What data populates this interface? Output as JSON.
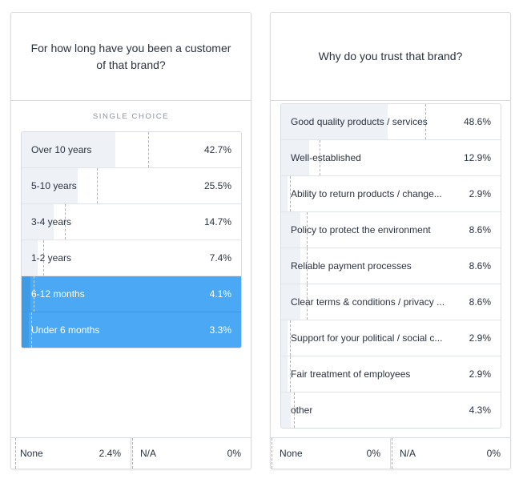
{
  "left_card": {
    "question": "For how long have you been a customer of that brand?",
    "type_label": "SINGLE CHOICE",
    "options": [
      {
        "label": "Over 10 years",
        "pct": "42.7%",
        "value": 42.7,
        "selected": false
      },
      {
        "label": "5-10 years",
        "pct": "25.5%",
        "value": 25.5,
        "selected": false
      },
      {
        "label": "3-4 years",
        "pct": "14.7%",
        "value": 14.7,
        "selected": false
      },
      {
        "label": "1-2 years",
        "pct": "7.4%",
        "value": 7.4,
        "selected": false
      },
      {
        "label": "6-12 months",
        "pct": "4.1%",
        "value": 4.1,
        "selected": true
      },
      {
        "label": "Under 6 months",
        "pct": "3.3%",
        "value": 3.3,
        "selected": true
      }
    ],
    "footer": [
      {
        "label": "None",
        "pct": "2.4%",
        "value": 2.4
      },
      {
        "label": "N/A",
        "pct": "0%",
        "value": 0
      }
    ]
  },
  "right_card": {
    "question": "Why do you trust that brand?",
    "options": [
      {
        "label": "Good quality products / services",
        "pct": "48.6%",
        "value": 48.6,
        "selected": false
      },
      {
        "label": "Well-established",
        "pct": "12.9%",
        "value": 12.9,
        "selected": false
      },
      {
        "label": "Ability to return products / change...",
        "pct": "2.9%",
        "value": 2.9,
        "selected": false
      },
      {
        "label": "Policy to protect the environment",
        "pct": "8.6%",
        "value": 8.6,
        "selected": false
      },
      {
        "label": "Reliable payment processes",
        "pct": "8.6%",
        "value": 8.6,
        "selected": false
      },
      {
        "label": "Clear terms & conditions / privacy ...",
        "pct": "8.6%",
        "value": 8.6,
        "selected": false
      },
      {
        "label": "Support for your political / social c...",
        "pct": "2.9%",
        "value": 2.9,
        "selected": false
      },
      {
        "label": "Fair treatment of employees",
        "pct": "2.9%",
        "value": 2.9,
        "selected": false
      },
      {
        "label": "other",
        "pct": "4.3%",
        "value": 4.3,
        "selected": false
      }
    ],
    "footer": [
      {
        "label": "None",
        "pct": "0%",
        "value": 0
      },
      {
        "label": "N/A",
        "pct": "0%",
        "value": 0
      }
    ]
  },
  "colors": {
    "selected_fill": "#4aa8f5",
    "bar_fill": "#eef1f5",
    "border": "#d9dde3"
  }
}
